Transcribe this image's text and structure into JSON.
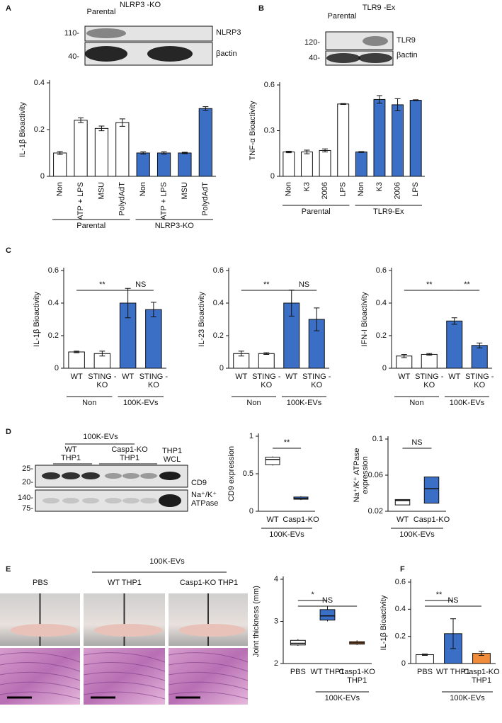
{
  "chart_data": [
    {
      "type": "bar",
      "panel": "A",
      "ylabel": "IL-1β Bioactivity",
      "categories": [
        "Non",
        "ATP + LPS",
        "MSU",
        "PolydAdT",
        "Non",
        "ATP + LPS",
        "MSU",
        "PolydAdT"
      ],
      "values": [
        0.1,
        0.24,
        0.205,
        0.23,
        0.1,
        0.1,
        0.1,
        0.29
      ],
      "errors": [
        0.006,
        0.01,
        0.01,
        0.016,
        0.005,
        0.005,
        0.003,
        0.008
      ],
      "colors": [
        "#ffffff",
        "#ffffff",
        "#ffffff",
        "#ffffff",
        "#3b6fc6",
        "#3b6fc6",
        "#3b6fc6",
        "#3b6fc6"
      ],
      "ylim": [
        0,
        0.4
      ],
      "yticks": [
        0,
        0.2,
        0.4
      ],
      "groups": [
        "Parental",
        "NLRP3-KO"
      ],
      "blot": {
        "lanes": [
          "Parental",
          "NLRP3 -KO"
        ],
        "markers": [
          "110-",
          "40-"
        ],
        "bands": [
          "NLRP3",
          "βactin"
        ]
      }
    },
    {
      "type": "bar",
      "panel": "B",
      "ylabel": "TNF-α Bioactivity",
      "categories": [
        "Non",
        "K3",
        "2006",
        "LPS",
        "Non",
        "K3",
        "2006",
        "LPS"
      ],
      "values": [
        0.16,
        0.16,
        0.17,
        0.475,
        0.16,
        0.505,
        0.47,
        0.5
      ],
      "errors": [
        0.005,
        0.012,
        0.01,
        0.003,
        0.003,
        0.025,
        0.04,
        0.003
      ],
      "colors": [
        "#ffffff",
        "#ffffff",
        "#ffffff",
        "#ffffff",
        "#3b6fc6",
        "#3b6fc6",
        "#3b6fc6",
        "#3b6fc6"
      ],
      "ylim": [
        0,
        0.6
      ],
      "yticks": [
        0,
        0.3,
        0.6
      ],
      "groups": [
        "Parental",
        "TLR9-Ex"
      ],
      "blot": {
        "lanes": [
          "Parental",
          "TLR9 -Ex"
        ],
        "markers": [
          "120-",
          "40-"
        ],
        "bands": [
          "TLR9",
          "βactin"
        ]
      }
    },
    {
      "type": "bar",
      "panel": "C",
      "ylabel": "IL-1β Bioactivity",
      "categories": [
        "WT",
        "STING -KO",
        "WT",
        "STING -KO"
      ],
      "values": [
        0.1,
        0.09,
        0.4,
        0.36
      ],
      "errors": [
        0.005,
        0.015,
        0.09,
        0.045
      ],
      "colors": [
        "#ffffff",
        "#ffffff",
        "#3b6fc6",
        "#3b6fc6"
      ],
      "ylim": [
        0,
        0.6
      ],
      "yticks": [
        0,
        0.2,
        0.4,
        0.6
      ],
      "groups": [
        "Non",
        "100K-EVs"
      ],
      "annotations": [
        "**",
        "NS"
      ]
    },
    {
      "type": "bar",
      "ylabel": "IL-23 Bioactivity",
      "categories": [
        "WT",
        "STING -KO",
        "WT",
        "STING -KO"
      ],
      "values": [
        0.09,
        0.09,
        0.4,
        0.3
      ],
      "errors": [
        0.015,
        0.005,
        0.08,
        0.07
      ],
      "colors": [
        "#ffffff",
        "#ffffff",
        "#3b6fc6",
        "#3b6fc6"
      ],
      "ylim": [
        0,
        0.6
      ],
      "yticks": [
        0,
        0.2,
        0.4,
        0.6
      ],
      "groups": [
        "Non",
        "100K-EVs"
      ],
      "annotations": [
        "**",
        "NS"
      ]
    },
    {
      "type": "bar",
      "ylabel": "IFN-I Bioactivity",
      "categories": [
        "WT",
        "STING -KO",
        "WT",
        "STING -KO"
      ],
      "values": [
        0.075,
        0.085,
        0.29,
        0.14
      ],
      "errors": [
        0.01,
        0.005,
        0.02,
        0.015
      ],
      "colors": [
        "#ffffff",
        "#ffffff",
        "#3b6fc6",
        "#3b6fc6"
      ],
      "ylim": [
        0,
        0.6
      ],
      "yticks": [
        0,
        0.2,
        0.4,
        0.6
      ],
      "groups": [
        "Non",
        "100K-EVs"
      ],
      "annotations": [
        "**",
        "**"
      ]
    },
    {
      "type": "box",
      "panel": "D",
      "ylabel": "CD9 expression",
      "categories": [
        "WT",
        "Casp1-KO"
      ],
      "min": [
        0.61,
        0.15
      ],
      "q1": [
        0.62,
        0.16
      ],
      "median": [
        0.69,
        0.17
      ],
      "q3": [
        0.72,
        0.19
      ],
      "max": [
        0.73,
        0.2
      ],
      "colors": [
        "#ffffff",
        "#3b6fc6"
      ],
      "ylim": [
        0,
        1
      ],
      "yticks": [
        0,
        0.5,
        1
      ],
      "groups": [
        "100K-EVs"
      ],
      "annotations": [
        "**"
      ],
      "blot": {
        "header": "100K-EVs",
        "lanes": [
          "WT THP1",
          "Casp1-KO THP1",
          "THP1 WCL"
        ],
        "markers": [
          "25-",
          "20-",
          "140-",
          "75-"
        ],
        "bands": [
          "CD9",
          "Na⁺/K⁺ ATPase"
        ]
      }
    },
    {
      "type": "box",
      "ylabel": [
        "Na⁺/K⁺ ATPase",
        "expression"
      ],
      "categories": [
        "WT",
        "Casp1-KO"
      ],
      "min": [
        0.027,
        0.029
      ],
      "q1": [
        0.027,
        0.029
      ],
      "median": [
        0.032,
        0.045
      ],
      "q3": [
        0.033,
        0.058
      ],
      "max": [
        0.033,
        0.058
      ],
      "colors": [
        "#ffffff",
        "#3b6fc6"
      ],
      "ylim": [
        0.02,
        0.1
      ],
      "yticks": [
        0.02,
        0.06,
        0.1
      ],
      "groups": [
        "100K-EVs"
      ],
      "annotations": [
        "NS"
      ]
    },
    {
      "type": "box",
      "panel": "E",
      "ylabel": "Joint thickness (mm)",
      "categories": [
        "PBS",
        "WT THP1",
        "Casp1-KO THP1"
      ],
      "min": [
        2.42,
        3.0,
        2.44
      ],
      "q1": [
        2.44,
        3.03,
        2.46
      ],
      "median": [
        2.48,
        3.13,
        2.49
      ],
      "q3": [
        2.55,
        3.28,
        2.52
      ],
      "max": [
        2.58,
        3.35,
        2.55
      ],
      "colors": [
        "#ffffff",
        "#3b6fc6",
        "#f08c3a"
      ],
      "ylim": [
        2,
        4
      ],
      "yticks": [
        2,
        3,
        4
      ],
      "groups": [
        "100K-EVs"
      ],
      "annotations": [
        "*",
        "NS"
      ],
      "photos": {
        "header": "100K-EVs",
        "labels": [
          "PBS",
          "WT THP1",
          "Casp1-KO THP1"
        ]
      }
    },
    {
      "type": "bar",
      "panel": "F",
      "ylabel": "IL-1β Bioactivity",
      "categories": [
        "PBS",
        "WT THP1",
        "Casp1-KO THP1"
      ],
      "values": [
        0.065,
        0.22,
        0.075
      ],
      "errors": [
        0.005,
        0.11,
        0.015
      ],
      "colors": [
        "#ffffff",
        "#3b6fc6",
        "#f08c3a"
      ],
      "ylim": [
        0,
        0.6
      ],
      "yticks": [
        0,
        0.2,
        0.4,
        0.6
      ],
      "groups": [
        "100K-EVs"
      ],
      "annotations": [
        "**",
        "NS"
      ]
    }
  ]
}
